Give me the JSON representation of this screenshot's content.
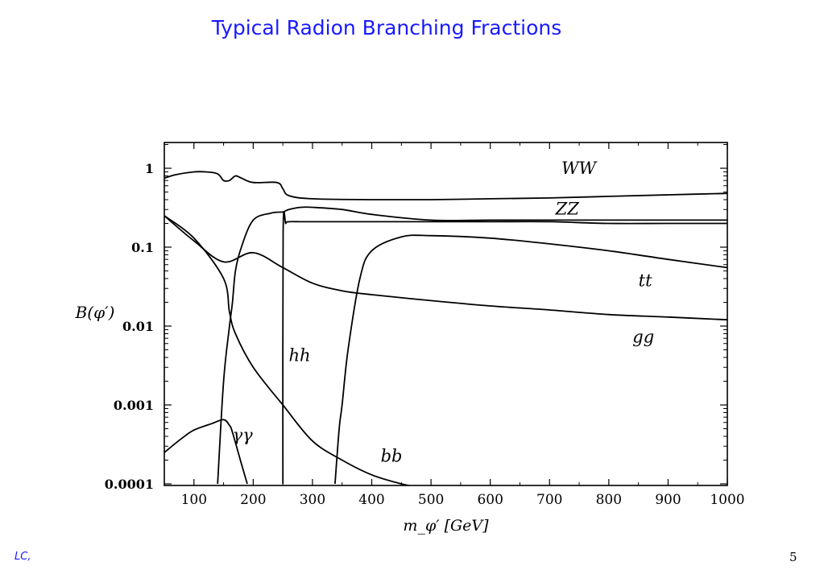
{
  "slide": {
    "title": "Typical Radion Branching Fractions",
    "page_number": "5",
    "footer": {
      "left": "LC, ",
      "middle": "",
      "right": ""
    }
  },
  "chart_data": {
    "type": "line",
    "title": "",
    "xlabel": "m_φ′ [GeV]",
    "ylabel": "B(φ′)",
    "x_scale": "linear",
    "y_scale": "log",
    "xlim": [
      50,
      1000
    ],
    "ylim": [
      0.0001,
      2
    ],
    "grid": false,
    "legend": "none (curves labeled directly)",
    "line_color": "#000000",
    "x_ticks": [
      "100",
      "200",
      "300",
      "400",
      "500",
      "600",
      "700",
      "800",
      "900",
      "1000"
    ],
    "y_ticks": [
      "1",
      "0.1",
      "0.01",
      "0.001",
      "0.0001"
    ],
    "series": [
      {
        "name": "WW",
        "x": [
          50,
          70,
          100,
          120,
          140,
          150,
          160,
          170,
          180,
          200,
          240,
          250,
          260,
          300,
          400,
          500,
          600,
          700,
          800,
          900,
          1000
        ],
        "y": [
          0.75,
          0.83,
          0.9,
          0.9,
          0.85,
          0.7,
          0.7,
          0.8,
          0.75,
          0.66,
          0.66,
          0.55,
          0.45,
          0.41,
          0.4,
          0.4,
          0.41,
          0.42,
          0.44,
          0.46,
          0.48
        ]
      },
      {
        "name": "ZZ",
        "x": [
          140,
          150,
          160,
          165,
          170,
          180,
          200,
          230,
          250,
          260,
          280,
          300,
          350,
          400,
          500,
          600,
          700,
          800,
          900,
          1000
        ],
        "y": [
          0.0001,
          0.002,
          0.01,
          0.02,
          0.05,
          0.1,
          0.22,
          0.27,
          0.28,
          0.3,
          0.32,
          0.32,
          0.3,
          0.26,
          0.22,
          0.22,
          0.22,
          0.22,
          0.22,
          0.22
        ]
      },
      {
        "name": "tt",
        "x": [
          338,
          345,
          350,
          360,
          380,
          400,
          450,
          500,
          600,
          700,
          800,
          900,
          1000
        ],
        "y": [
          0.0001,
          0.0005,
          0.001,
          0.005,
          0.04,
          0.09,
          0.135,
          0.14,
          0.13,
          0.11,
          0.09,
          0.07,
          0.055
        ]
      },
      {
        "name": "gg",
        "x": [
          50,
          100,
          150,
          200,
          250,
          300,
          350,
          400,
          500,
          600,
          700,
          800,
          900,
          1000
        ],
        "y": [
          0.25,
          0.12,
          0.065,
          0.085,
          0.055,
          0.035,
          0.028,
          0.025,
          0.021,
          0.018,
          0.016,
          0.014,
          0.013,
          0.012
        ]
      },
      {
        "name": "bb",
        "x": [
          50,
          100,
          150,
          160,
          170,
          200,
          250,
          300,
          350,
          400,
          450,
          480
        ],
        "y": [
          0.25,
          0.13,
          0.04,
          0.015,
          0.008,
          0.003,
          0.001,
          0.00035,
          0.0002,
          0.00013,
          0.0001,
          9e-05
        ]
      },
      {
        "name": "hh",
        "x": [
          250,
          250.5,
          255,
          260,
          280,
          300,
          350,
          400,
          500,
          600,
          700,
          800,
          900,
          1000
        ],
        "y": [
          0.0001,
          0.15,
          0.2,
          0.21,
          0.21,
          0.21,
          0.21,
          0.21,
          0.21,
          0.21,
          0.21,
          0.2,
          0.2,
          0.2
        ]
      },
      {
        "name": "γγ",
        "x": [
          50,
          80,
          100,
          130,
          150,
          160,
          165,
          180,
          190
        ],
        "y": [
          0.00025,
          0.00038,
          0.00048,
          0.00058,
          0.00065,
          0.00055,
          0.00045,
          0.00018,
          0.0001
        ]
      }
    ],
    "annotations": [
      {
        "text": "WW",
        "x": 720,
        "y": 0.85
      },
      {
        "text": "ZZ",
        "x": 710,
        "y": 0.26
      },
      {
        "text": "tt",
        "x": 850,
        "y": 0.032
      },
      {
        "text": "gg",
        "x": 840,
        "y": 0.0062
      },
      {
        "text": "hh",
        "x": 260,
        "y": 0.0036
      },
      {
        "text": "γγ",
        "x": 165,
        "y": 0.00035
      },
      {
        "text": "bb",
        "x": 415,
        "y": 0.00019
      }
    ]
  }
}
